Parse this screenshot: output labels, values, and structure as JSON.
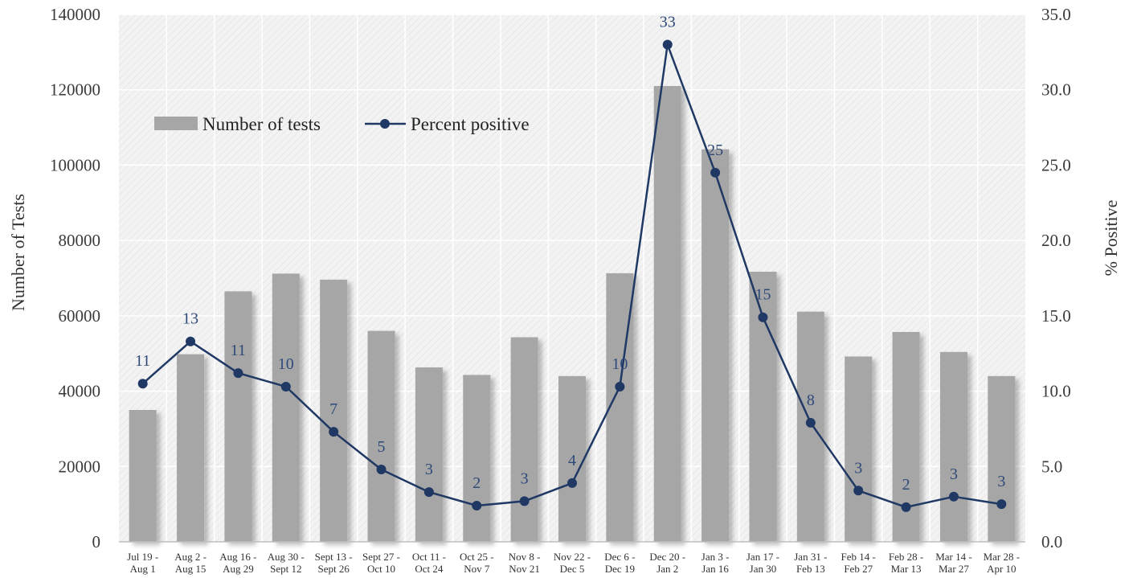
{
  "chart_data": {
    "type": "bar",
    "categories": [
      [
        "Jul 19 -",
        "Aug 1"
      ],
      [
        "Aug 2 -",
        "Aug 15"
      ],
      [
        "Aug 16 -",
        "Aug 29"
      ],
      [
        "Aug 30 -",
        "Sept 12"
      ],
      [
        "Sept 13 -",
        "Sept 26"
      ],
      [
        "Sept 27 -",
        "Oct 10"
      ],
      [
        "Oct 11 -",
        "Oct 24"
      ],
      [
        "Oct 25 -",
        "Nov 7"
      ],
      [
        "Nov 8 -",
        "Nov 21"
      ],
      [
        "Nov 22 -",
        "Dec 5"
      ],
      [
        "Dec 6 -",
        "Dec 19"
      ],
      [
        "Dec 20 -",
        "Jan 2"
      ],
      [
        "Jan 3 -",
        "Jan 16"
      ],
      [
        "Jan 17 -",
        "Jan 30"
      ],
      [
        "Jan 31 -",
        "Feb 13"
      ],
      [
        "Feb 14 -",
        "Feb 27"
      ],
      [
        "Feb 28 -",
        "Mar 13"
      ],
      [
        "Mar 14 -",
        "Mar 27"
      ],
      [
        "Mar 28 -",
        "Apr 10"
      ]
    ],
    "series": [
      {
        "name": "Number of tests",
        "type": "bar",
        "axis": "left",
        "values": [
          35000,
          49800,
          66500,
          71200,
          69600,
          56000,
          46300,
          44300,
          54300,
          44000,
          71300,
          121000,
          104200,
          71700,
          61100,
          49200,
          55700,
          50400,
          44000
        ]
      },
      {
        "name": "Percent positive",
        "type": "line",
        "axis": "right",
        "values": [
          10.5,
          13.3,
          11.2,
          10.3,
          7.3,
          4.8,
          3.3,
          2.4,
          2.7,
          3.9,
          10.3,
          33.0,
          24.5,
          14.9,
          7.9,
          3.4,
          2.3,
          3.0,
          2.5
        ],
        "labels": [
          "11",
          "13",
          "11",
          "10",
          "7",
          "5",
          "3",
          "2",
          "3",
          "4",
          "10",
          "33",
          "25",
          "15",
          "8",
          "3",
          "2",
          "3",
          "3"
        ]
      }
    ],
    "ylabel": "Number of Tests",
    "y2label": "% Positive",
    "ylim": [
      0,
      140000
    ],
    "y2lim": [
      0,
      35
    ],
    "yticks": [
      "0",
      "20000",
      "40000",
      "60000",
      "80000",
      "100000",
      "120000",
      "140000"
    ],
    "y2ticks": [
      "0.0",
      "5.0",
      "10.0",
      "15.0",
      "20.0",
      "25.0",
      "30.0",
      "35.0"
    ],
    "grid": true,
    "legend": "top-left",
    "colors": {
      "bar": "#a6a6a6",
      "line": "#1f3864",
      "label": "#2f4a7a",
      "plot_bg": "#f2f2f2",
      "grid": "#ffffff"
    }
  }
}
